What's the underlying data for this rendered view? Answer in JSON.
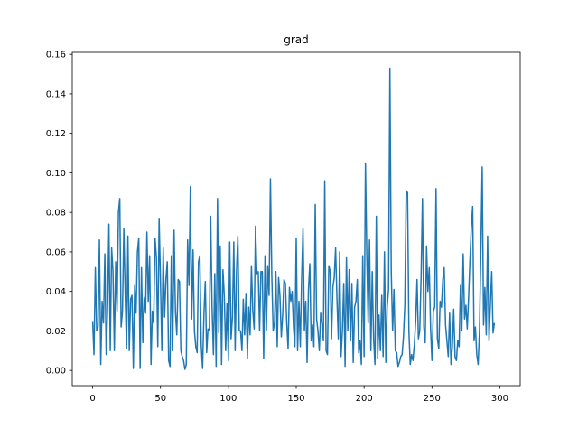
{
  "chart_data": {
    "type": "line",
    "title": "grad",
    "xlabel": "",
    "ylabel": "",
    "xlim": [
      -15,
      315
    ],
    "ylim": [
      -0.0077,
      0.161
    ],
    "xticks": [
      0,
      50,
      100,
      150,
      200,
      250,
      300
    ],
    "yticks": [
      0.0,
      0.02,
      0.04,
      0.06,
      0.08,
      0.1,
      0.12,
      0.14,
      0.16
    ],
    "xtick_labels": [
      "0",
      "50",
      "100",
      "150",
      "200",
      "250",
      "300"
    ],
    "ytick_labels": [
      "0.00",
      "0.02",
      "0.04",
      "0.06",
      "0.08",
      "0.10",
      "0.12",
      "0.14",
      "0.16"
    ],
    "grid": false,
    "legend": "none",
    "series": [
      {
        "color": "#1f77b4",
        "x_start": 0,
        "x_step": 1,
        "values": [
          0.025,
          0.008,
          0.052,
          0.02,
          0.022,
          0.066,
          0.003,
          0.035,
          0.024,
          0.059,
          0.008,
          0.031,
          0.074,
          0.01,
          0.062,
          0.05,
          0.01,
          0.055,
          0.03,
          0.08,
          0.087,
          0.022,
          0.03,
          0.072,
          0.039,
          0.011,
          0.068,
          0.01,
          0.036,
          0.038,
          0.001,
          0.043,
          0.029,
          0.06,
          0.067,
          0.001,
          0.052,
          0.014,
          0.037,
          0.029,
          0.07,
          0.035,
          0.058,
          0.003,
          0.03,
          0.024,
          0.067,
          0.057,
          0.012,
          0.077,
          0.045,
          0.01,
          0.062,
          0.027,
          0.046,
          0.055,
          0.005,
          0.002,
          0.058,
          0.01,
          0.071,
          0.03,
          0.018,
          0.046,
          0.045,
          0.01,
          0.007,
          0.005,
          0.0005,
          0.003,
          0.066,
          0.043,
          0.093,
          0.026,
          0.061,
          0.02,
          0.012,
          0.009,
          0.055,
          0.058,
          0.013,
          0.001,
          0.028,
          0.045,
          0.009,
          0.021,
          0.02,
          0.078,
          0.032,
          0.008,
          0.049,
          0.002,
          0.087,
          0.019,
          0.063,
          0.003,
          0.051,
          0.038,
          0.01,
          0.034,
          0.005,
          0.065,
          0.016,
          0.027,
          0.065,
          0.01,
          0.05,
          0.068,
          0.02,
          0.02,
          0.01,
          0.036,
          0.018,
          0.039,
          0.006,
          0.032,
          0.018,
          0.053,
          0.03,
          0.021,
          0.073,
          0.049,
          0.05,
          0.02,
          0.05,
          0.05,
          0.006,
          0.058,
          0.02,
          0.053,
          0.038,
          0.097,
          0.048,
          0.02,
          0.024,
          0.05,
          0.012,
          0.047,
          0.038,
          0.017,
          0.028,
          0.046,
          0.044,
          0.024,
          0.011,
          0.042,
          0.035,
          0.04,
          0.022,
          0.012,
          0.067,
          0.01,
          0.035,
          0.012,
          0.047,
          0.072,
          0.02,
          0.035,
          0.004,
          0.041,
          0.054,
          0.015,
          0.023,
          0.012,
          0.084,
          0.026,
          0.02,
          0.01,
          0.029,
          0.024,
          0.015,
          0.096,
          0.01,
          0.008,
          0.053,
          0.05,
          0.016,
          0.042,
          0.047,
          0.062,
          0.036,
          0.016,
          0.06,
          0.007,
          0.02,
          0.044,
          0.002,
          0.057,
          0.02,
          0.051,
          0.015,
          0.044,
          0.004,
          0.032,
          0.035,
          0.046,
          0.009,
          0.015,
          0.003,
          0.058,
          0.007,
          0.105,
          0.058,
          0.024,
          0.066,
          0.01,
          0.05,
          0.016,
          0.003,
          0.078,
          0.006,
          0.028,
          0.01,
          0.038,
          0.007,
          0.06,
          0.004,
          0.032,
          0.041,
          0.153,
          0.05,
          0.02,
          0.041,
          0.01,
          0.009,
          0.002,
          0.004,
          0.007,
          0.008,
          0.017,
          0.033,
          0.091,
          0.09,
          0.02,
          0.003,
          0.008,
          0.005,
          0.013,
          0.025,
          0.046,
          0.016,
          0.02,
          0.048,
          0.087,
          0.022,
          0.014,
          0.063,
          0.04,
          0.052,
          0.021,
          0.005,
          0.03,
          0.032,
          0.092,
          0.016,
          0.011,
          0.035,
          0.032,
          0.046,
          0.052,
          0.023,
          0.015,
          0.007,
          0.029,
          0.003,
          0.012,
          0.031,
          0.007,
          0.005,
          0.015,
          0.012,
          0.043,
          0.02,
          0.059,
          0.026,
          0.033,
          0.021,
          0.037,
          0.056,
          0.073,
          0.083,
          0.015,
          0.022,
          0.008,
          0.003,
          0.02,
          0.06,
          0.103,
          0.023,
          0.042,
          0.018,
          0.068,
          0.015,
          0.033,
          0.05,
          0.019,
          0.024
        ]
      }
    ]
  }
}
